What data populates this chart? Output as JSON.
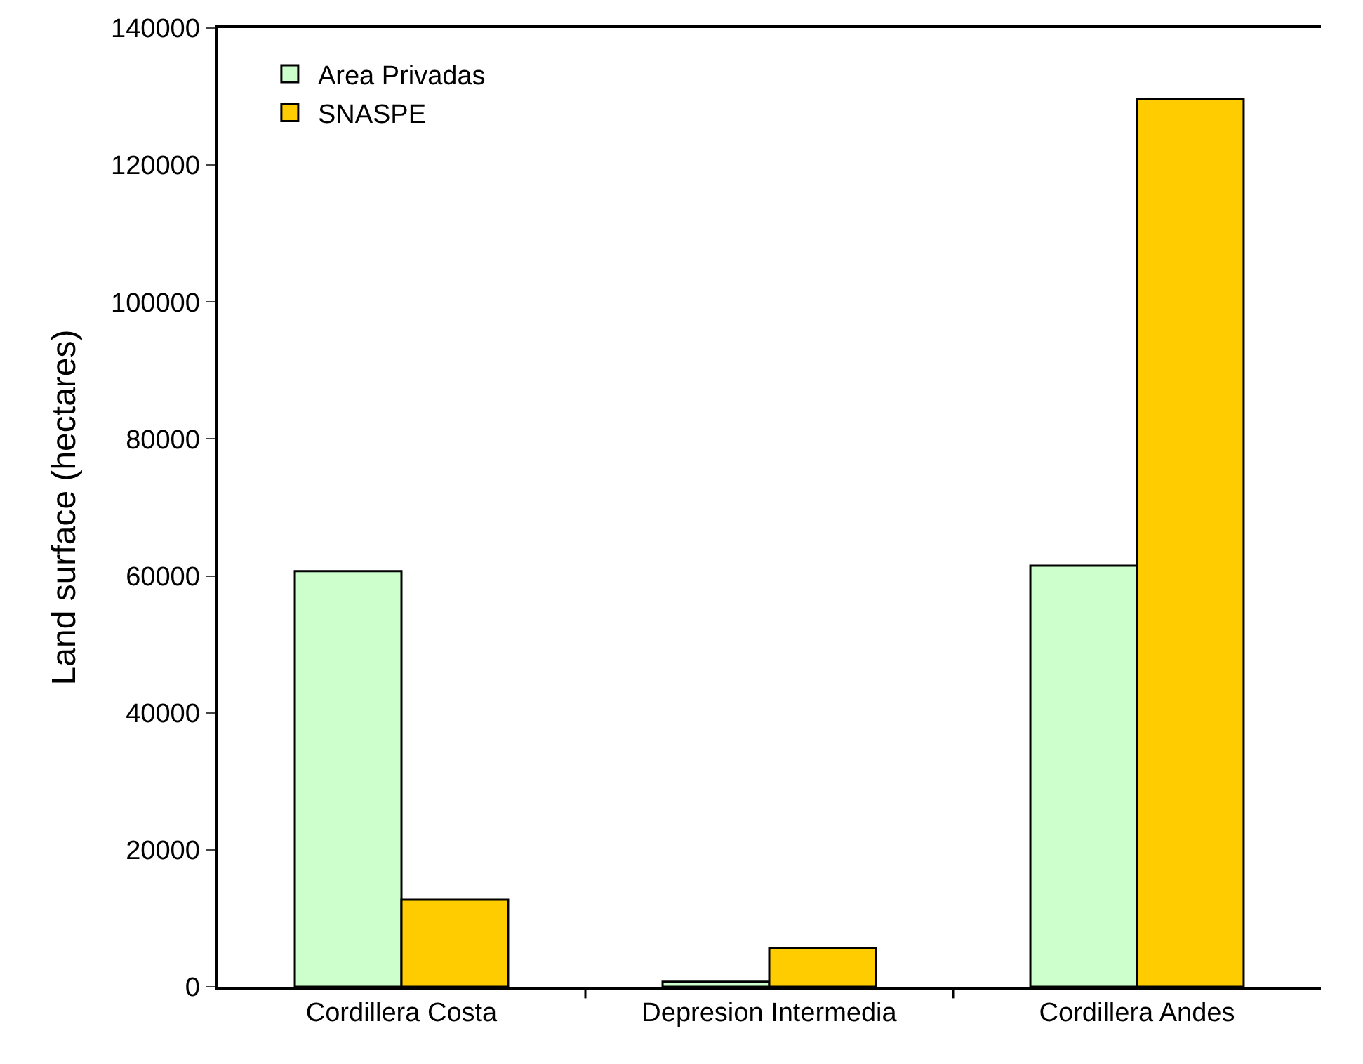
{
  "chart_data": {
    "type": "bar",
    "ylabel": "Land surface (hectares)",
    "categories": [
      "Cordillera Costa",
      "Depresion Intermedia",
      "Cordillera Andes"
    ],
    "series": [
      {
        "name": "Area Privadas",
        "color": "#ccffcc",
        "values": [
          60700,
          750,
          61500
        ]
      },
      {
        "name": "SNASPE",
        "color": "#ffcc00",
        "values": [
          12700,
          5700,
          129700
        ]
      }
    ],
    "ylim": [
      0,
      140000
    ],
    "yticks": [
      0,
      20000,
      40000,
      60000,
      80000,
      100000,
      120000,
      140000
    ],
    "grid": false,
    "legend": "top left"
  }
}
